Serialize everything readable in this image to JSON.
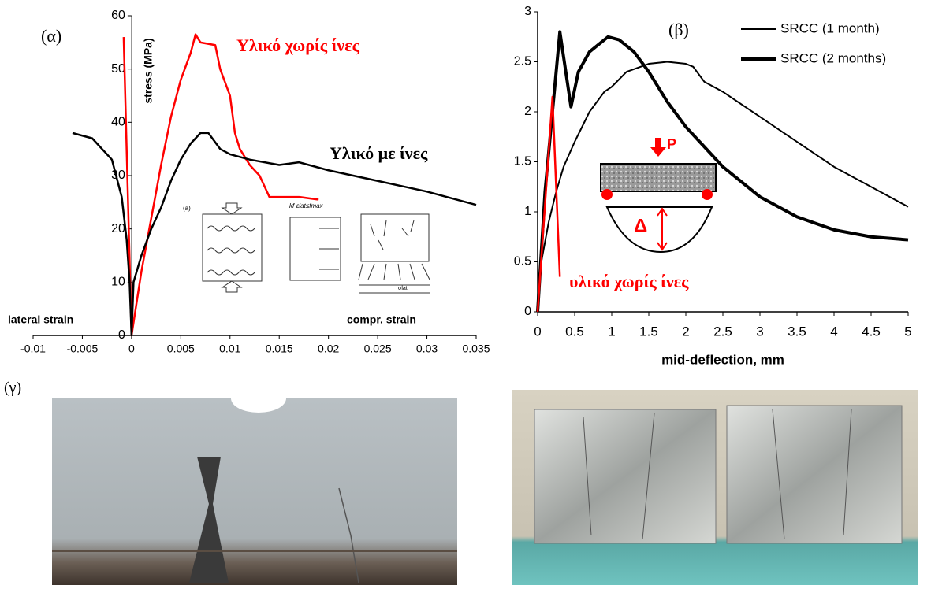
{
  "chart_data": [
    {
      "type": "line",
      "ylabel": "stress (MPa)",
      "annotations": [
        "(α)",
        "lateral strain",
        "compr. strain",
        "(a)",
        "kf·εlat≤fmax",
        "σlat"
      ],
      "xlim": [
        -0.01,
        0.035
      ],
      "xticks": [
        -0.01,
        -0.005,
        0,
        0.005,
        0.01,
        0.015,
        0.02,
        0.025,
        0.03,
        0.035
      ],
      "ylim": [
        0,
        60
      ],
      "yticks": [
        0,
        10,
        20,
        30,
        40,
        50,
        60
      ],
      "grid": false,
      "series": [
        {
          "name": "Υλικό χωρίς ίνες",
          "color": "#ff0000",
          "width": 2.5,
          "label_inline": true,
          "x": [
            -0.0008,
            0,
            0.001,
            0.002,
            0.003,
            0.004,
            0.005,
            0.006,
            0.0065,
            0.007,
            0.0085,
            0.009,
            0.01,
            0.0105,
            0.011,
            0.012,
            0.013,
            0.0135,
            0.014,
            0.015,
            0.017,
            0.019
          ],
          "values": [
            56,
            0,
            12,
            22,
            32,
            41,
            48,
            53,
            56.5,
            55,
            54.5,
            50,
            45,
            38,
            35,
            32,
            30,
            28,
            26,
            26,
            26,
            25.5
          ]
        },
        {
          "name": "Υλικό με ίνες",
          "color": "#000000",
          "width": 2.5,
          "label_inline": true,
          "x": [
            -0.006,
            -0.004,
            -0.002,
            -0.001,
            -0.0005,
            -0.0002,
            0,
            0.0002,
            0.001,
            0.002,
            0.003,
            0.004,
            0.005,
            0.006,
            0.007,
            0.0078,
            0.009,
            0.01,
            0.012,
            0.015,
            0.017,
            0.02,
            0.025,
            0.03,
            0.035
          ],
          "values": [
            38,
            37,
            33,
            26,
            18,
            10,
            0,
            10,
            15,
            20,
            24,
            29,
            33,
            36,
            38,
            38,
            35,
            34,
            33,
            32,
            32.5,
            31,
            29,
            27,
            24.5
          ]
        }
      ]
    },
    {
      "type": "line",
      "xlabel": "mid-deflection, mm",
      "annotations": [
        "(β)",
        "P",
        "Δ"
      ],
      "xlim": [
        0,
        5
      ],
      "xticks": [
        0,
        0.5,
        1,
        1.5,
        2,
        2.5,
        3,
        3.5,
        4,
        4.5,
        5
      ],
      "ylim": [
        0,
        3
      ],
      "yticks": [
        0,
        0.5,
        1,
        1.5,
        2,
        2.5,
        3
      ],
      "grid": false,
      "legend": "upper right",
      "series": [
        {
          "name": "SRCC (1 month)",
          "color": "#000000",
          "width": 2,
          "x": [
            0,
            0.05,
            0.15,
            0.25,
            0.35,
            0.5,
            0.7,
            0.9,
            1,
            1.2,
            1.5,
            1.75,
            2,
            2.1,
            2.25,
            2.5,
            3,
            3.5,
            4,
            4.5,
            5
          ],
          "values": [
            0,
            0.5,
            0.9,
            1.2,
            1.45,
            1.7,
            2,
            2.2,
            2.25,
            2.4,
            2.48,
            2.5,
            2.48,
            2.45,
            2.3,
            2.2,
            1.95,
            1.7,
            1.45,
            1.25,
            1.05
          ]
        },
        {
          "name": "SRCC (2 months)",
          "color": "#000000",
          "width": 4,
          "x": [
            0,
            0.1,
            0.2,
            0.3,
            0.4,
            0.45,
            0.55,
            0.7,
            0.95,
            1.1,
            1.3,
            1.5,
            1.75,
            2,
            2.5,
            3,
            3.5,
            4,
            4.5,
            5
          ],
          "values": [
            0,
            1.2,
            2,
            2.8,
            2.3,
            2.05,
            2.4,
            2.6,
            2.75,
            2.72,
            2.6,
            2.4,
            2.1,
            1.85,
            1.45,
            1.15,
            0.95,
            0.82,
            0.75,
            0.72
          ]
        },
        {
          "name": "υλικό χωρίς ίνες",
          "color": "#ff0000",
          "width": 2.5,
          "label_inline": true,
          "x": [
            0,
            0.2,
            0.3
          ],
          "values": [
            0,
            2.15,
            0.35
          ]
        }
      ]
    }
  ],
  "figure": {
    "panel_label": "(γ)"
  }
}
